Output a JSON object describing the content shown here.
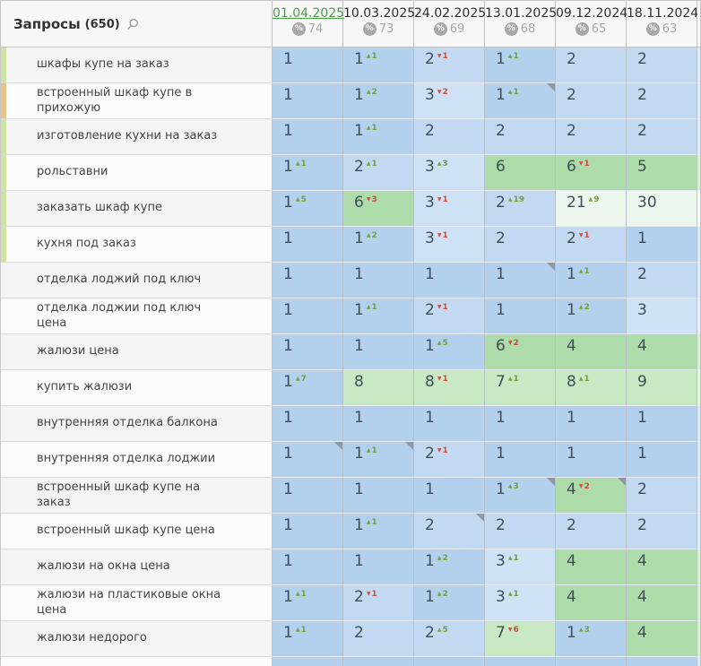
{
  "header": {
    "title": "Запросы",
    "count": "(650)",
    "columns": [
      {
        "date": "01.04.2025",
        "visibility": "74",
        "selected": true
      },
      {
        "date": "10.03.2025",
        "visibility": "73",
        "selected": false
      },
      {
        "date": "24.02.2025",
        "visibility": "69",
        "selected": false
      },
      {
        "date": "13.01.2025",
        "visibility": "68",
        "selected": false
      },
      {
        "date": "09.12.2024",
        "visibility": "65",
        "selected": false
      },
      {
        "date": "18.11.2024",
        "visibility": "63",
        "selected": false
      }
    ]
  },
  "icons": {
    "percent": "%",
    "up_arrow": "▲",
    "down_arrow": "▼",
    "search": "magnifier"
  },
  "colors": {
    "selected_date": "#4ba04b",
    "change_up": "#76a13c",
    "change_down": "#c7503f",
    "positions": {
      "top1": "#b3d0ed",
      "top2": "#c2d9f1",
      "top3": "#cfe1f5",
      "top4_6": "#aedbaa",
      "top7_10": "#c8e9c3",
      "top11_30": "#ecf6ec",
      "beyond": "#ffffff"
    },
    "tags": {
      "green": "#cde5a1",
      "orange": "#ecc28c"
    }
  },
  "rows": [
    {
      "keyword": "шкафы купе на заказ",
      "tag": "green",
      "cells": [
        {
          "pos": 1
        },
        {
          "pos": 1,
          "change": {
            "dir": "up",
            "val": 1
          }
        },
        {
          "pos": 2,
          "change": {
            "dir": "down",
            "val": 1
          }
        },
        {
          "pos": 1,
          "change": {
            "dir": "up",
            "val": 1
          }
        },
        {
          "pos": 2
        },
        {
          "pos": 2
        }
      ]
    },
    {
      "keyword": "встроенный шкаф купе в прихожую",
      "tag": "orange",
      "cells": [
        {
          "pos": 1
        },
        {
          "pos": 1,
          "change": {
            "dir": "up",
            "val": 2
          }
        },
        {
          "pos": 3,
          "change": {
            "dir": "down",
            "val": 2
          }
        },
        {
          "pos": 1,
          "change": {
            "dir": "up",
            "val": 1
          },
          "marker": true
        },
        {
          "pos": 2
        },
        {
          "pos": 2
        }
      ]
    },
    {
      "keyword": "изготовление кухни на заказ",
      "tag": "green",
      "cells": [
        {
          "pos": 1
        },
        {
          "pos": 1,
          "change": {
            "dir": "up",
            "val": 1
          }
        },
        {
          "pos": 2
        },
        {
          "pos": 2
        },
        {
          "pos": 2
        },
        {
          "pos": 2
        }
      ]
    },
    {
      "keyword": "рольставни",
      "tag": "green",
      "cells": [
        {
          "pos": 1,
          "change": {
            "dir": "up",
            "val": 1
          }
        },
        {
          "pos": 2,
          "change": {
            "dir": "up",
            "val": 1
          }
        },
        {
          "pos": 3,
          "change": {
            "dir": "up",
            "val": 3
          }
        },
        {
          "pos": 6
        },
        {
          "pos": 6,
          "change": {
            "dir": "down",
            "val": 1
          }
        },
        {
          "pos": 5
        }
      ]
    },
    {
      "keyword": "заказать шкаф купе",
      "tag": "green",
      "cells": [
        {
          "pos": 1,
          "change": {
            "dir": "up",
            "val": 5
          }
        },
        {
          "pos": 6,
          "change": {
            "dir": "down",
            "val": 3
          }
        },
        {
          "pos": 3,
          "change": {
            "dir": "down",
            "val": 1
          }
        },
        {
          "pos": 2,
          "change": {
            "dir": "up",
            "val": 19
          }
        },
        {
          "pos": 21,
          "change": {
            "dir": "up",
            "val": 9
          }
        },
        {
          "pos": 30
        }
      ]
    },
    {
      "keyword": "кухня под заказ",
      "tag": "green",
      "cells": [
        {
          "pos": 1
        },
        {
          "pos": 1,
          "change": {
            "dir": "up",
            "val": 2
          }
        },
        {
          "pos": 3,
          "change": {
            "dir": "down",
            "val": 1
          }
        },
        {
          "pos": 2
        },
        {
          "pos": 2,
          "change": {
            "dir": "down",
            "val": 1
          }
        },
        {
          "pos": 1
        }
      ]
    },
    {
      "keyword": "отделка лоджий под ключ",
      "tag": null,
      "cells": [
        {
          "pos": 1
        },
        {
          "pos": 1
        },
        {
          "pos": 1
        },
        {
          "pos": 1,
          "marker": true
        },
        {
          "pos": 1,
          "change": {
            "dir": "up",
            "val": 1
          }
        },
        {
          "pos": 2
        }
      ]
    },
    {
      "keyword": "отделка лоджии под ключ цена",
      "tag": null,
      "cells": [
        {
          "pos": 1
        },
        {
          "pos": 1,
          "change": {
            "dir": "up",
            "val": 1
          }
        },
        {
          "pos": 2,
          "change": {
            "dir": "down",
            "val": 1
          }
        },
        {
          "pos": 1
        },
        {
          "pos": 1,
          "change": {
            "dir": "up",
            "val": 2
          }
        },
        {
          "pos": 3
        }
      ]
    },
    {
      "keyword": "жалюзи цена",
      "tag": null,
      "cells": [
        {
          "pos": 1
        },
        {
          "pos": 1
        },
        {
          "pos": 1,
          "change": {
            "dir": "up",
            "val": 5
          }
        },
        {
          "pos": 6,
          "change": {
            "dir": "down",
            "val": 2
          }
        },
        {
          "pos": 4
        },
        {
          "pos": 4
        }
      ]
    },
    {
      "keyword": "купить жалюзи",
      "tag": null,
      "cells": [
        {
          "pos": 1,
          "change": {
            "dir": "up",
            "val": 7
          }
        },
        {
          "pos": 8
        },
        {
          "pos": 8,
          "change": {
            "dir": "down",
            "val": 1
          }
        },
        {
          "pos": 7,
          "change": {
            "dir": "up",
            "val": 1
          }
        },
        {
          "pos": 8,
          "change": {
            "dir": "up",
            "val": 1
          }
        },
        {
          "pos": 9
        }
      ]
    },
    {
      "keyword": "внутренняя отделка балкона",
      "tag": null,
      "cells": [
        {
          "pos": 1
        },
        {
          "pos": 1
        },
        {
          "pos": 1
        },
        {
          "pos": 1
        },
        {
          "pos": 1
        },
        {
          "pos": 1
        }
      ]
    },
    {
      "keyword": "внутренняя отделка лоджии",
      "tag": null,
      "cells": [
        {
          "pos": 1,
          "marker": true
        },
        {
          "pos": 1,
          "change": {
            "dir": "up",
            "val": 1
          },
          "marker": true
        },
        {
          "pos": 2,
          "change": {
            "dir": "down",
            "val": 1
          }
        },
        {
          "pos": 1
        },
        {
          "pos": 1
        },
        {
          "pos": 1
        }
      ]
    },
    {
      "keyword": "встроенный шкаф купе на заказ",
      "tag": null,
      "cells": [
        {
          "pos": 1
        },
        {
          "pos": 1
        },
        {
          "pos": 1
        },
        {
          "pos": 1,
          "change": {
            "dir": "up",
            "val": 3
          },
          "marker": true
        },
        {
          "pos": 4,
          "change": {
            "dir": "down",
            "val": 2
          },
          "marker": true
        },
        {
          "pos": 2
        }
      ]
    },
    {
      "keyword": "встроенный шкаф купе цена",
      "tag": null,
      "cells": [
        {
          "pos": 1
        },
        {
          "pos": 1,
          "change": {
            "dir": "up",
            "val": 1
          }
        },
        {
          "pos": 2,
          "marker": true
        },
        {
          "pos": 2
        },
        {
          "pos": 2
        },
        {
          "pos": 2
        }
      ]
    },
    {
      "keyword": "жалюзи на окна цена",
      "tag": null,
      "cells": [
        {
          "pos": 1
        },
        {
          "pos": 1
        },
        {
          "pos": 1,
          "change": {
            "dir": "up",
            "val": 2
          }
        },
        {
          "pos": 3,
          "change": {
            "dir": "up",
            "val": 1
          }
        },
        {
          "pos": 4
        },
        {
          "pos": 4
        }
      ]
    },
    {
      "keyword": "жалюзи на пластиковые окна цена",
      "tag": null,
      "cells": [
        {
          "pos": 1,
          "change": {
            "dir": "up",
            "val": 1
          }
        },
        {
          "pos": 2,
          "change": {
            "dir": "down",
            "val": 1
          }
        },
        {
          "pos": 1,
          "change": {
            "dir": "up",
            "val": 2
          }
        },
        {
          "pos": 3,
          "change": {
            "dir": "up",
            "val": 1
          }
        },
        {
          "pos": 4
        },
        {
          "pos": 4
        }
      ]
    },
    {
      "keyword": "жалюзи недорого",
      "tag": null,
      "cells": [
        {
          "pos": 1,
          "change": {
            "dir": "up",
            "val": 1
          }
        },
        {
          "pos": 2
        },
        {
          "pos": 2,
          "change": {
            "dir": "up",
            "val": 5
          }
        },
        {
          "pos": 7,
          "change": {
            "dir": "down",
            "val": 6
          }
        },
        {
          "pos": 1,
          "change": {
            "dir": "up",
            "val": 3
          }
        },
        {
          "pos": 4
        }
      ]
    }
  ]
}
